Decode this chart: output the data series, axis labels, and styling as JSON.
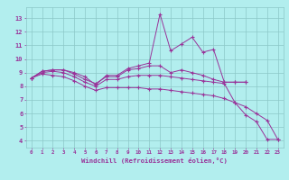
{
  "title": "",
  "xlabel": "Windchill (Refroidissement éolien,°C)",
  "ylabel": "",
  "xlim": [
    -0.5,
    23.5
  ],
  "ylim": [
    3.5,
    13.8
  ],
  "bg_color": "#b2eeee",
  "grid_color": "#8cc8c8",
  "line_color": "#993399",
  "series": [
    {
      "x": [
        0,
        1,
        2,
        3,
        4,
        5,
        6,
        7,
        8,
        9,
        10,
        11,
        12,
        13,
        14,
        15,
        16,
        17,
        18,
        19,
        20
      ],
      "y": [
        8.6,
        9.1,
        9.2,
        9.2,
        9.0,
        8.7,
        8.1,
        8.8,
        8.8,
        9.3,
        9.5,
        9.7,
        13.3,
        10.6,
        11.1,
        11.6,
        10.5,
        10.7,
        8.3,
        8.3,
        8.3
      ]
    },
    {
      "x": [
        0,
        1,
        2,
        3,
        4,
        5,
        6,
        7,
        8,
        9,
        10,
        11,
        12,
        13,
        14,
        15,
        16,
        17,
        18,
        19,
        20
      ],
      "y": [
        8.6,
        9.1,
        9.2,
        9.2,
        8.9,
        8.5,
        8.2,
        8.7,
        8.7,
        9.2,
        9.3,
        9.5,
        9.5,
        9.0,
        9.2,
        9.0,
        8.8,
        8.5,
        8.3,
        8.3,
        8.3
      ]
    },
    {
      "x": [
        0,
        1,
        2,
        3,
        4,
        5,
        6,
        7,
        8,
        9,
        10,
        11,
        12,
        13,
        14,
        15,
        16,
        17,
        18,
        19,
        20,
        21,
        22,
        23
      ],
      "y": [
        8.6,
        9.0,
        9.1,
        9.0,
        8.7,
        8.3,
        8.0,
        8.5,
        8.5,
        8.7,
        8.8,
        8.8,
        8.8,
        8.7,
        8.6,
        8.5,
        8.4,
        8.3,
        8.2,
        6.8,
        5.9,
        5.4,
        4.1,
        4.1
      ]
    },
    {
      "x": [
        0,
        1,
        2,
        3,
        4,
        5,
        6,
        7,
        8,
        9,
        10,
        11,
        12,
        13,
        14,
        15,
        16,
        17,
        18,
        19,
        20,
        21,
        22,
        23
      ],
      "y": [
        8.6,
        8.9,
        8.8,
        8.7,
        8.4,
        8.0,
        7.7,
        7.9,
        7.9,
        7.9,
        7.9,
        7.8,
        7.8,
        7.7,
        7.6,
        7.5,
        7.4,
        7.3,
        7.1,
        6.8,
        6.5,
        6.0,
        5.5,
        4.1
      ]
    }
  ],
  "xtick_fontsize": 4.2,
  "ytick_fontsize": 5.0,
  "xlabel_fontsize": 5.2,
  "marker": "+"
}
